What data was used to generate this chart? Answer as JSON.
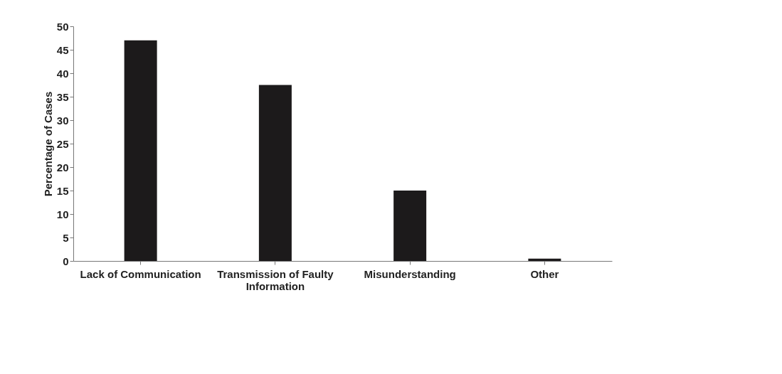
{
  "chart_data": {
    "type": "bar",
    "ylabel": "Percentage of Cases",
    "categories": [
      "Lack of Communication",
      "Transmission of Faulty Information",
      "Misunderstanding",
      "Other"
    ],
    "values": [
      47,
      37.5,
      15,
      0.5
    ],
    "color": "#1c1a1b",
    "ylim": [
      0,
      50
    ],
    "yticks": [
      0,
      5,
      10,
      15,
      20,
      25,
      30,
      35,
      40,
      45,
      50
    ],
    "grid": false
  }
}
